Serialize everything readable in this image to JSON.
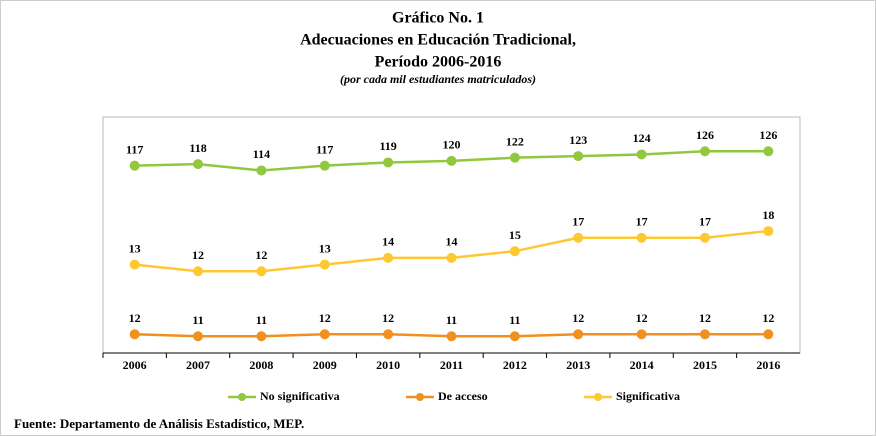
{
  "chart_data": {
    "type": "line",
    "title": "Gráfico No. 1",
    "subtitle": "Adecuaciones en Educación Tradicional,",
    "period": "Período 2006-2016",
    "note": "(por cada mil estudiantes matriculados)",
    "source": "Fuente:  Departamento de Análisis Estadístico, MEP.",
    "categories": [
      "2006",
      "2007",
      "2008",
      "2009",
      "2010",
      "2011",
      "2012",
      "2013",
      "2014",
      "2015",
      "2016"
    ],
    "series": [
      {
        "name": "No significativa",
        "color": "#92c83e",
        "values": [
          117,
          118,
          114,
          117,
          119,
          120,
          122,
          123,
          124,
          126,
          126
        ]
      },
      {
        "name": "De acceso",
        "color": "#f0901e",
        "values": [
          12,
          11,
          11,
          12,
          12,
          11,
          11,
          12,
          12,
          12,
          12
        ]
      },
      {
        "name": "Significativa",
        "color": "#fdc832",
        "values": [
          13,
          12,
          12,
          13,
          14,
          14,
          15,
          17,
          17,
          17,
          18
        ]
      }
    ],
    "legend": "bottom"
  }
}
